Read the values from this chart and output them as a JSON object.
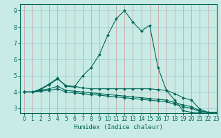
{
  "xlabel": "Humidex (Indice chaleur)",
  "xlim": [
    -0.5,
    23
  ],
  "ylim": [
    2.7,
    9.4
  ],
  "yticks": [
    3,
    4,
    5,
    6,
    7,
    8,
    9
  ],
  "xticks": [
    0,
    1,
    2,
    3,
    4,
    5,
    6,
    7,
    8,
    9,
    10,
    11,
    12,
    13,
    14,
    15,
    16,
    17,
    18,
    19,
    20,
    21,
    22,
    23
  ],
  "background_color": "#c8ebe5",
  "grid_color": "#99cccc",
  "line_color": "#006655",
  "series": [
    {
      "x": [
        0,
        1,
        2,
        3,
        4,
        5,
        6,
        7,
        8,
        9,
        10,
        11,
        12,
        13,
        14,
        15,
        16,
        17,
        18,
        19,
        20,
        21,
        22,
        23
      ],
      "y": [
        4.0,
        4.0,
        4.2,
        4.5,
        4.85,
        4.35,
        4.3,
        5.0,
        5.5,
        6.3,
        7.5,
        8.5,
        9.0,
        8.3,
        7.75,
        8.1,
        5.5,
        4.1,
        3.5,
        2.85,
        2.75,
        2.75,
        2.75,
        2.75
      ]
    },
    {
      "x": [
        0,
        1,
        2,
        3,
        4,
        5,
        6,
        7,
        8,
        9,
        10,
        11,
        12,
        13,
        14,
        15,
        16,
        17,
        18,
        19,
        20,
        21,
        22,
        23
      ],
      "y": [
        4.0,
        4.0,
        4.15,
        4.45,
        4.8,
        4.4,
        4.35,
        4.25,
        4.2,
        4.2,
        4.2,
        4.2,
        4.2,
        4.2,
        4.2,
        4.2,
        4.15,
        4.1,
        3.9,
        3.65,
        3.5,
        2.95,
        2.75,
        2.75
      ]
    },
    {
      "x": [
        0,
        1,
        2,
        3,
        4,
        5,
        6,
        7,
        8,
        9,
        10,
        11,
        12,
        13,
        14,
        15,
        16,
        17,
        18,
        19,
        20,
        21,
        22,
        23
      ],
      "y": [
        4.0,
        4.0,
        4.1,
        4.2,
        4.35,
        4.1,
        4.05,
        4.0,
        3.95,
        3.9,
        3.85,
        3.8,
        3.75,
        3.7,
        3.65,
        3.6,
        3.55,
        3.5,
        3.35,
        3.2,
        3.1,
        2.85,
        2.75,
        2.75
      ]
    },
    {
      "x": [
        0,
        1,
        2,
        3,
        4,
        5,
        6,
        7,
        8,
        9,
        10,
        11,
        12,
        13,
        14,
        15,
        16,
        17,
        18,
        19,
        20,
        21,
        22,
        23
      ],
      "y": [
        4.0,
        4.0,
        4.05,
        4.1,
        4.2,
        4.0,
        3.95,
        3.9,
        3.85,
        3.8,
        3.75,
        3.7,
        3.65,
        3.6,
        3.55,
        3.5,
        3.45,
        3.4,
        3.25,
        3.1,
        3.0,
        2.8,
        2.75,
        2.75
      ]
    }
  ]
}
